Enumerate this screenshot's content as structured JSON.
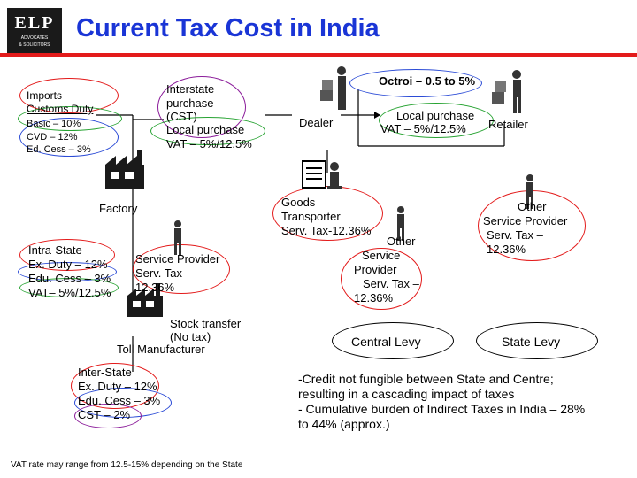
{
  "header": {
    "logo_main": "ELP",
    "logo_sub1": "ADVOCATES",
    "logo_sub2": "& SOLICITORS",
    "title": "Current Tax Cost in India",
    "rule_color": "#e31b1b",
    "title_color": "#1a35d6"
  },
  "imports": {
    "title": "Imports",
    "line1": "Customs Duty",
    "line2": "Basic – 10%",
    "line3": "CVD – 12%",
    "line4": "Ed. Cess – 3%"
  },
  "interstate_purchase": {
    "line1": "Interstate",
    "line2": "purchase",
    "line3": "(CST)",
    "line4": "Local purchase",
    "line5": "VAT – 5%/12.5%"
  },
  "octroi": {
    "label": "Octroi – 0.5 to 5%"
  },
  "dealer": {
    "label": "Dealer"
  },
  "local_purchase_retail": {
    "line1": "Local purchase",
    "line2": "VAT – 5%/12.5%",
    "retailer": "Retailer"
  },
  "factory": {
    "label": "Factory"
  },
  "goods_transporter": {
    "line1": "Goods",
    "line2": "Transporter",
    "line3": "Serv. Tax-12.36%"
  },
  "other_service_provider_right": {
    "line1": "Other",
    "line2": "Service Provider",
    "line3": "Serv. Tax –",
    "line4": "12.36%"
  },
  "intra_state": {
    "line1": "Intra-State",
    "line2": "Ex. Duty – 12%",
    "line3": "Edu. Cess – 3%",
    "line4": "VAT– 5%/12.5%"
  },
  "service_provider": {
    "line1": "Service Provider",
    "line2": "Serv. Tax –",
    "line3": "12.36%"
  },
  "other_service_provider_mid": {
    "line1": "Other",
    "line2": "Service",
    "line3": "Provider",
    "line4": "Serv. Tax –",
    "line5": "12.36%"
  },
  "stock_transfer": {
    "line1": "Stock transfer",
    "line2": "(No tax)",
    "line3": "Toll Manufacturer"
  },
  "legend": {
    "central": "Central Levy",
    "state": "State Levy"
  },
  "inter_state": {
    "line1": "Inter-State",
    "line2": "Ex. Duty – 12%",
    "line3": "Edu. Cess – 3%",
    "line4": "CST – 2%"
  },
  "notes": {
    "line1": "-Credit not fungible between State and Centre;",
    "line2": "resulting in a cascading impact of taxes",
    "line3": "- Cumulative burden of Indirect Taxes in India – 28%",
    "line4": "to 44% (approx.)"
  },
  "footnote": "VAT rate may range from 12.5-15% depending on the State",
  "icons": [
    "factory-icon",
    "person-icon",
    "person-with-boxes-icon",
    "transporter-icon",
    "toll-manufacturer-icon"
  ]
}
